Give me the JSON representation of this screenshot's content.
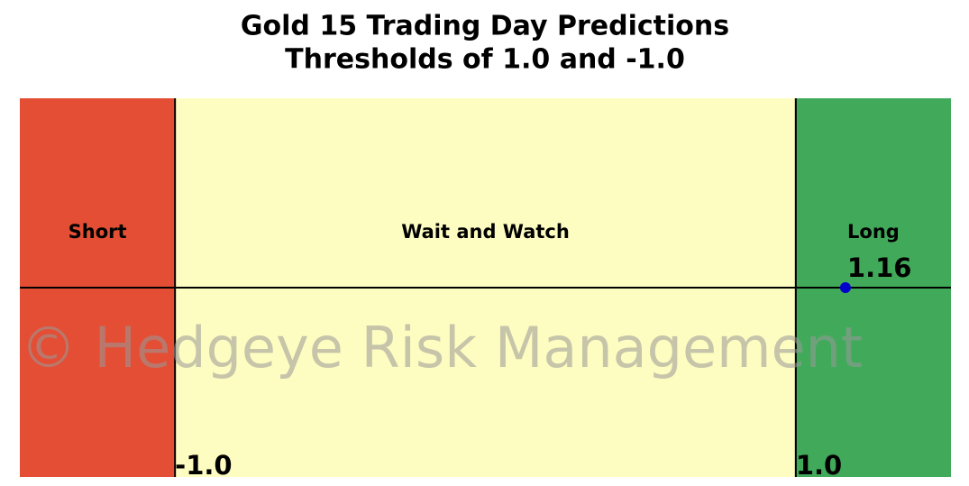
{
  "chart_data": {
    "type": "zones",
    "title": [
      "Gold 15 Trading Day Predictions",
      "Thresholds of 1.0 and -1.0"
    ],
    "xlim": [
      -1.5,
      1.5
    ],
    "thresholds": [
      {
        "value": -1,
        "label": "-1.0"
      },
      {
        "value": 1,
        "label": "1.0"
      }
    ],
    "zones": [
      {
        "name": "Short",
        "color": "#e34e34"
      },
      {
        "name": "Wait and Watch",
        "color": "#fefdc1"
      },
      {
        "name": "Long",
        "color": "#40aa5a"
      }
    ],
    "values": [
      1.16
    ],
    "color": "#0000cc",
    "watermark": "© Hedgeye Risk Management"
  }
}
